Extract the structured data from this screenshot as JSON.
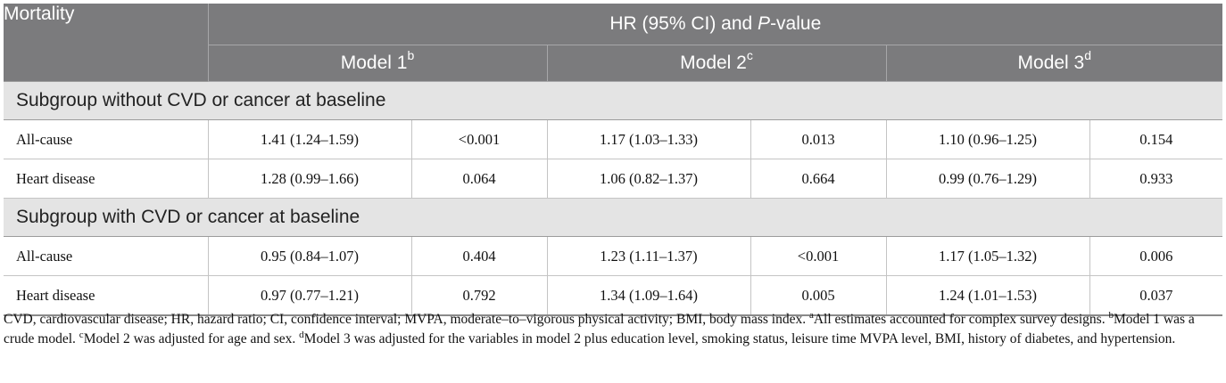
{
  "header": {
    "mortality": "Mortality",
    "hr_prefix": "HR (95% CI) and ",
    "hr_p": "P",
    "hr_suffix": "-value",
    "models": [
      {
        "label": "Model 1",
        "sup": "b"
      },
      {
        "label": "Model 2",
        "sup": "c"
      },
      {
        "label": "Model 3",
        "sup": "d"
      }
    ]
  },
  "subgroups": [
    {
      "title": "Subgroup without CVD or cancer at baseline",
      "rows": [
        {
          "label": "All-cause",
          "cells": [
            "1.41 (1.24–1.59)",
            "<0.001",
            "1.17 (1.03–1.33)",
            "0.013",
            "1.10 (0.96–1.25)",
            "0.154"
          ]
        },
        {
          "label": "Heart disease",
          "cells": [
            "1.28 (0.99–1.66)",
            "0.064",
            "1.06 (0.82–1.37)",
            "0.664",
            "0.99 (0.76–1.29)",
            "0.933"
          ]
        }
      ]
    },
    {
      "title": "Subgroup with CVD or cancer at baseline",
      "rows": [
        {
          "label": "All-cause",
          "cells": [
            "0.95 (0.84–1.07)",
            "0.404",
            "1.23 (1.11–1.37)",
            "<0.001",
            "1.17 (1.05–1.32)",
            "0.006"
          ]
        },
        {
          "label": "Heart disease",
          "cells": [
            "0.97 (0.77–1.21)",
            "0.792",
            "1.34 (1.09–1.64)",
            "0.005",
            "1.24 (1.01–1.53)",
            "0.037"
          ]
        }
      ]
    }
  ],
  "footnote": {
    "abbrev": "CVD, cardiovascular disease; HR, hazard ratio; CI, confidence interval; MVPA, moderate–to–vigorous physical activity; BMI, body mass index. ",
    "a_sup": "a",
    "a_text": "All estimates accounted for complex survey designs. ",
    "b_sup": "b",
    "b_text": "Model 1 was a crude model. ",
    "c_sup": "c",
    "c_text": "Model 2 was adjusted for age and sex. ",
    "d_sup": "d",
    "d_text": "Model 3 was adjusted for the variables in model 2 plus education level, smoking status, leisure time MVPA level, BMI, history of diabetes, and hypertension."
  }
}
